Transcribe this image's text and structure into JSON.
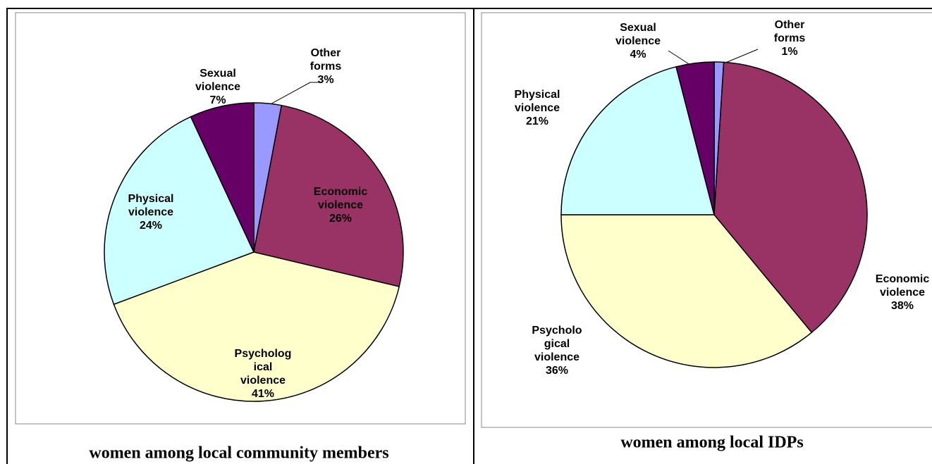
{
  "chart_data": [
    {
      "type": "pie",
      "title": "women among local community members",
      "categories": [
        [
          "Other",
          "forms"
        ],
        [
          "Economic",
          "violence"
        ],
        [
          "Psycholog",
          "ical",
          "violence"
        ],
        [
          "Physical",
          "violence"
        ],
        [
          "Sexual",
          "violence"
        ]
      ],
      "values": [
        3,
        26,
        41,
        24,
        7
      ],
      "value_labels": [
        "3%",
        "26%",
        "41%",
        "24%",
        "7%"
      ],
      "colors": [
        "#9999ff",
        "#993366",
        "#ffffcc",
        "#ccffff",
        "#660066"
      ]
    },
    {
      "type": "pie",
      "title": "women among local IDPs",
      "categories": [
        [
          "Other",
          "forms"
        ],
        [
          "Economic",
          "violence"
        ],
        [
          "Psycholo",
          "gical",
          "violence"
        ],
        [
          "Physical",
          "violence"
        ],
        [
          "Sexual",
          "violence"
        ]
      ],
      "values": [
        1,
        38,
        36,
        21,
        4
      ],
      "value_labels": [
        "1%",
        "38%",
        "36%",
        "21%",
        "4%"
      ],
      "colors": [
        "#9999ff",
        "#993366",
        "#ffffcc",
        "#ccffff",
        "#660066"
      ]
    }
  ]
}
